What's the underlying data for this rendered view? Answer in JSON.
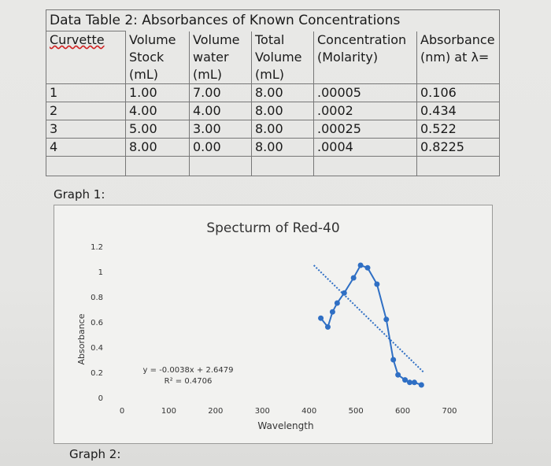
{
  "table": {
    "title": "Data Table 2: Absorbances of Known Concentrations",
    "headers": [
      [
        "Curvette",
        "",
        "",
        ""
      ],
      [
        "Volume",
        "Stock",
        "(mL)"
      ],
      [
        "Volume",
        "water",
        "(mL)"
      ],
      [
        "Total",
        "Volume",
        "(mL)"
      ],
      [
        "Concentration",
        "(Molarity)"
      ],
      [
        "Absorbance",
        "(nm) at λ="
      ]
    ],
    "rows": [
      [
        "1",
        "1.00",
        "7.00",
        "8.00",
        ".00005",
        "0.106"
      ],
      [
        "2",
        "4.00",
        "4.00",
        "8.00",
        ".0002",
        "0.434"
      ],
      [
        "3",
        "5.00",
        "3.00",
        "8.00",
        ".00025",
        "0.522"
      ],
      [
        "4",
        "8.00",
        "0.00",
        "8.00",
        ".0004",
        "0.8225"
      ]
    ]
  },
  "graph1_label": "Graph 1:",
  "graph2_label": "Graph 2:",
  "chart_data": {
    "type": "scatter",
    "title": "Specturm of Red-40",
    "xlabel": "Wavelength",
    "ylabel": "Absorbance",
    "xlim": [
      0,
      700
    ],
    "ylim": [
      0,
      1.2
    ],
    "xticks": [
      "0",
      "100",
      "200",
      "300",
      "400",
      "500",
      "600",
      "700"
    ],
    "yticks": [
      "0",
      "0.2",
      "0.4",
      "0.6",
      "0.8",
      "1",
      "1.2"
    ],
    "grid": false,
    "series": [
      {
        "x": [
          425,
          440,
          450,
          460,
          475,
          495,
          510,
          525,
          545,
          565,
          580,
          590,
          605,
          615,
          625,
          640
        ],
        "y": [
          0.63,
          0.56,
          0.68,
          0.75,
          0.83,
          0.95,
          1.05,
          1.03,
          0.9,
          0.62,
          0.3,
          0.18,
          0.14,
          0.12,
          0.12,
          0.1
        ]
      }
    ],
    "trendline": {
      "x": [
        410,
        645
      ],
      "y": [
        1.05,
        0.2
      ]
    },
    "equation": "y = -0.0038x + 2.6479",
    "r_squared": "R² = 0.4706",
    "color": "#2f6fc4",
    "trend_color": "#2f6fc4"
  }
}
